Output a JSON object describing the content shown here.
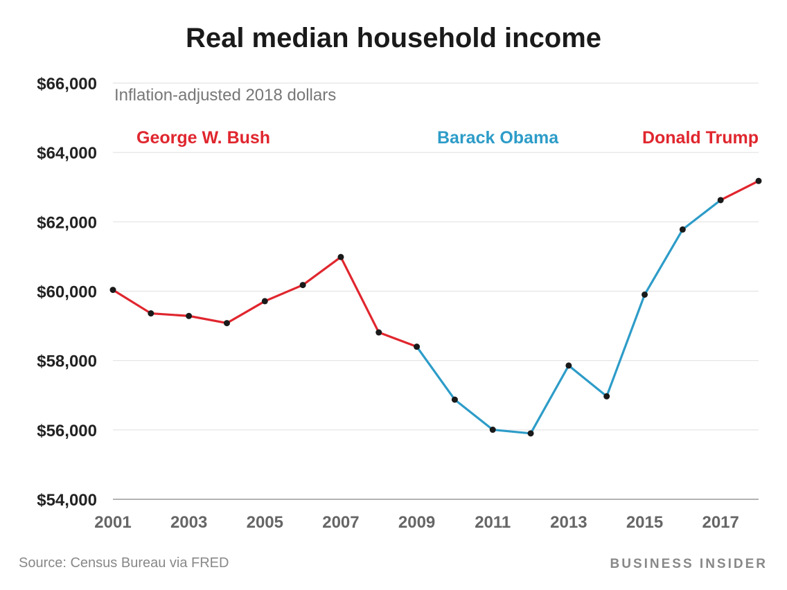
{
  "chart_data": {
    "type": "line",
    "title": "Real median household income",
    "subtitle": "Inflation-adjusted 2018 dollars",
    "xlabel": "",
    "ylabel": "",
    "x": [
      2001,
      2002,
      2003,
      2004,
      2005,
      2006,
      2007,
      2008,
      2009,
      2010,
      2011,
      2012,
      2013,
      2014,
      2015,
      2016,
      2017,
      2018
    ],
    "values": [
      60038,
      59360,
      59286,
      59080,
      59712,
      60178,
      60985,
      58811,
      58400,
      56873,
      56006,
      55900,
      57856,
      56969,
      59901,
      61779,
      62626,
      63179
    ],
    "ylim": [
      54000,
      66000
    ],
    "xlim": [
      2001,
      2018
    ],
    "yticks": [
      54000,
      56000,
      58000,
      60000,
      62000,
      64000,
      66000
    ],
    "ytick_labels": [
      "$54,000",
      "$56,000",
      "$58,000",
      "$60,000",
      "$62,000",
      "$64,000",
      "$66,000"
    ],
    "xticks": [
      2001,
      2003,
      2005,
      2007,
      2009,
      2011,
      2013,
      2015,
      2017
    ],
    "xtick_labels": [
      "2001",
      "2003",
      "2005",
      "2007",
      "2009",
      "2011",
      "2013",
      "2015",
      "2017"
    ],
    "grid": true,
    "segments": [
      {
        "name": "George W. Bush",
        "from": 2001,
        "to": 2009,
        "color": "#e0262e"
      },
      {
        "name": "Barack Obama",
        "from": 2009,
        "to": 2017,
        "color": "#2d9cc8"
      },
      {
        "name": "Donald Trump",
        "from": 2017,
        "to": 2018,
        "color": "#e0262e"
      }
    ],
    "marker_color": "#1a1a1a"
  },
  "footer": {
    "source": "Source: Census Bureau via FRED",
    "logo": "BUSINESS INSIDER"
  }
}
